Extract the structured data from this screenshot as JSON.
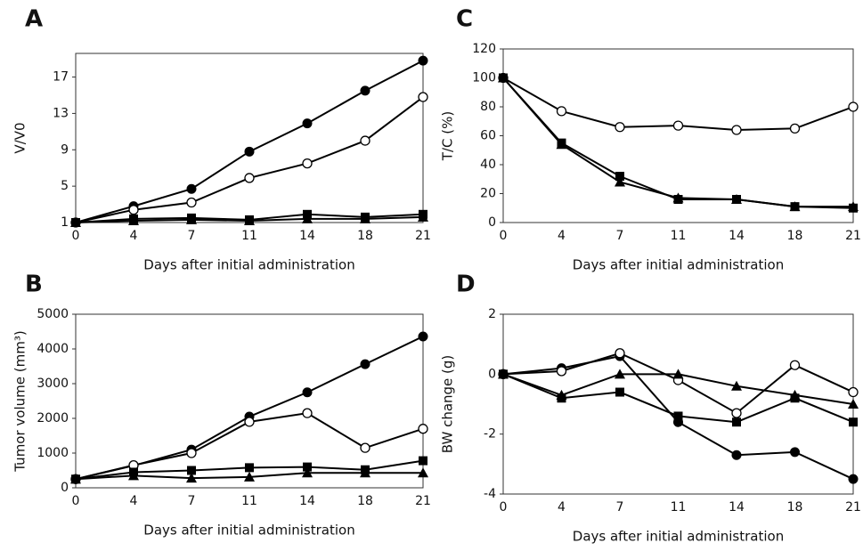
{
  "chart_data": [
    {
      "type": "line",
      "label": "A",
      "y_title": "V/V0",
      "x_title": "Days after initial administration",
      "categories": [
        "0",
        "4",
        "7",
        "11",
        "14",
        "18",
        "21"
      ],
      "ylim": [
        1,
        19.6
      ],
      "yticks": [
        1,
        5,
        9,
        13,
        17
      ],
      "series": [
        {
          "marker": "circle-filled",
          "color": "#000000",
          "values": [
            1,
            2.8,
            4.7,
            8.8,
            11.9,
            15.5,
            18.8
          ]
        },
        {
          "marker": "circle-open",
          "color": "#000000",
          "values": [
            1,
            2.4,
            3.2,
            5.9,
            7.5,
            10,
            14.8
          ]
        },
        {
          "marker": "square",
          "color": "#000000",
          "values": [
            1,
            1.4,
            1.5,
            1.3,
            1.9,
            1.6,
            1.9
          ]
        },
        {
          "marker": "triangle",
          "color": "#000000",
          "values": [
            1,
            1.2,
            1.3,
            1.2,
            1.4,
            1.4,
            1.6
          ]
        }
      ]
    },
    {
      "type": "line",
      "label": "B",
      "y_title": "Tumor volume (mm³)",
      "x_title": "Days after initial administration",
      "categories": [
        "0",
        "4",
        "7",
        "11",
        "14",
        "18",
        "21"
      ],
      "ylim": [
        0,
        5000
      ],
      "yticks": [
        0,
        1000,
        2000,
        3000,
        4000,
        5000
      ],
      "series": [
        {
          "marker": "circle-filled",
          "color": "#000000",
          "values": [
            250,
            640,
            1100,
            2050,
            2750,
            3560,
            4360
          ]
        },
        {
          "marker": "circle-open",
          "color": "#000000",
          "values": [
            250,
            650,
            1000,
            1900,
            2150,
            1150,
            1700
          ]
        },
        {
          "marker": "square",
          "color": "#000000",
          "values": [
            250,
            450,
            500,
            580,
            600,
            520,
            780
          ]
        },
        {
          "marker": "triangle",
          "color": "#000000",
          "values": [
            250,
            350,
            280,
            310,
            430,
            430,
            430
          ]
        }
      ]
    },
    {
      "type": "line",
      "label": "C",
      "y_title": "T/C (%)",
      "x_title": "Days after initial administration",
      "categories": [
        "0",
        "4",
        "7",
        "11",
        "14",
        "18",
        "21"
      ],
      "ylim": [
        0,
        120
      ],
      "yticks": [
        0,
        20,
        40,
        60,
        80,
        100,
        120
      ],
      "series": [
        {
          "marker": "circle-open",
          "color": "#000000",
          "values": [
            100,
            77,
            66,
            67,
            64,
            65,
            80
          ]
        },
        {
          "marker": "square",
          "color": "#000000",
          "values": [
            100,
            55,
            32,
            16,
            16,
            11,
            10
          ]
        },
        {
          "marker": "triangle",
          "color": "#000000",
          "values": [
            100,
            54,
            28,
            17,
            16,
            11,
            11
          ]
        }
      ]
    },
    {
      "type": "line",
      "label": "D",
      "y_title": "BW change (g)",
      "x_title": "Days after initial administration",
      "categories": [
        "0",
        "4",
        "7",
        "11",
        "14",
        "18",
        "21"
      ],
      "ylim": [
        -4,
        2
      ],
      "yticks": [
        -4,
        -2,
        0,
        2
      ],
      "series": [
        {
          "marker": "circle-filled",
          "color": "#000000",
          "values": [
            0,
            0.2,
            0.6,
            -1.6,
            -2.7,
            -2.6,
            -3.5
          ]
        },
        {
          "marker": "circle-open",
          "color": "#000000",
          "values": [
            0,
            0.1,
            0.7,
            -0.2,
            -1.3,
            0.3,
            -0.6
          ]
        },
        {
          "marker": "triangle",
          "color": "#000000",
          "values": [
            0,
            -0.7,
            0,
            0,
            -0.4,
            -0.7,
            -1.0
          ]
        },
        {
          "marker": "square",
          "color": "#000000",
          "values": [
            0,
            -0.8,
            -0.6,
            -1.4,
            -1.6,
            -0.8,
            -1.6
          ]
        }
      ]
    }
  ]
}
